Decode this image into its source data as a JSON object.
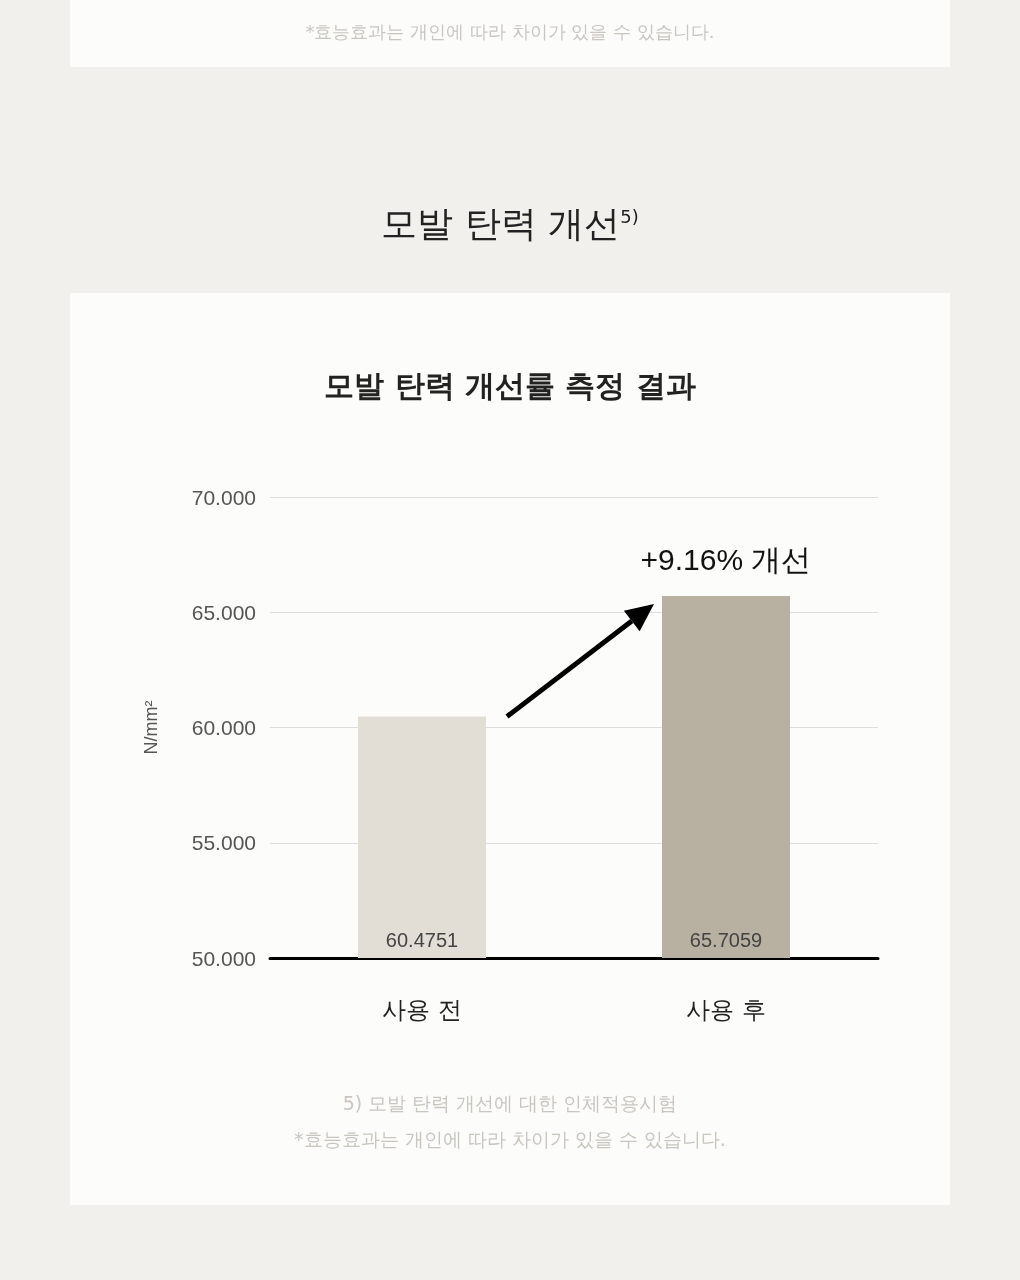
{
  "chart_data": {
    "type": "bar",
    "title": "모발 탄력 개선$^{5)}$",
    "subtitle": "모발 탄력 개선률 측정 결과",
    "categories": [
      "사용 전",
      "사용 후"
    ],
    "values": [
      60.4751,
      65.7059
    ],
    "colors": [
      "#e2ded6",
      "#b8b0a1"
    ],
    "ylabel": "N/mm²",
    "ylim": [
      50,
      70
    ],
    "yticks": [
      {
        "value": 50,
        "label": "50.000"
      },
      {
        "value": 55,
        "label": "55.000"
      },
      {
        "value": 60,
        "label": "60.000"
      },
      {
        "value": 65,
        "label": "65.000"
      },
      {
        "value": 70,
        "label": "70.000"
      }
    ],
    "grid": "y",
    "data_labels": true,
    "annotations": [
      "*효능효과는 개인에 따라 차이가 있을 수 있습니다.",
      "+9.16% 개선",
      "5) 모발 탄력 개선에 대한 인체적용시험",
      "*효능효과는 개인에 따라 차이가 있을 수 있습니다."
    ]
  }
}
